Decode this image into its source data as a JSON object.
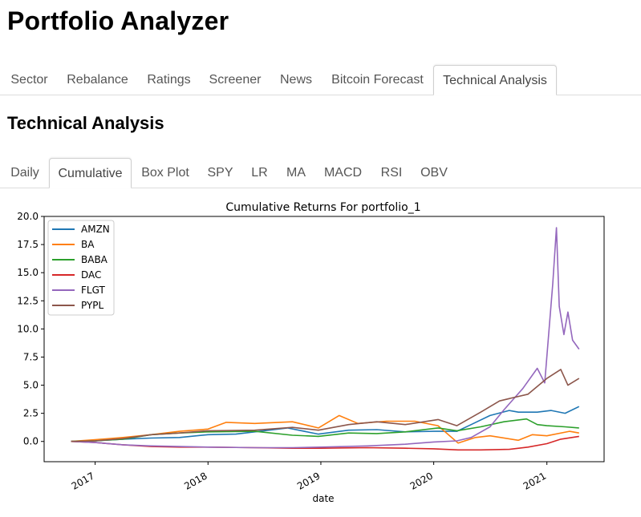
{
  "app": {
    "title": "Portfolio Analyzer"
  },
  "main_tabs": [
    {
      "label": "Sector",
      "active": false
    },
    {
      "label": "Rebalance",
      "active": false
    },
    {
      "label": "Ratings",
      "active": false
    },
    {
      "label": "Screener",
      "active": false
    },
    {
      "label": "News",
      "active": false
    },
    {
      "label": "Bitcoin Forecast",
      "active": false
    },
    {
      "label": "Technical Analysis",
      "active": true
    }
  ],
  "section": {
    "title": "Technical Analysis"
  },
  "sub_tabs": [
    {
      "label": "Daily",
      "active": false
    },
    {
      "label": "Cumulative",
      "active": true
    },
    {
      "label": "Box Plot",
      "active": false
    },
    {
      "label": "SPY",
      "active": false
    },
    {
      "label": "LR",
      "active": false
    },
    {
      "label": "MA",
      "active": false
    },
    {
      "label": "MACD",
      "active": false
    },
    {
      "label": "RSI",
      "active": false
    },
    {
      "label": "OBV",
      "active": false
    }
  ],
  "chart_data": {
    "type": "line",
    "title": "Cumulative Returns For portfolio_1",
    "xlabel": "date",
    "ylabel": "",
    "ylim": [
      -1.8,
      20
    ],
    "xlim": [
      "2016-07-20",
      "2021-07-05"
    ],
    "yticks": [
      "0.0",
      "2.5",
      "5.0",
      "7.5",
      "10.0",
      "12.5",
      "15.0",
      "17.5",
      "20.0"
    ],
    "xticks": [
      "2017",
      "2018",
      "2019",
      "2020",
      "2021"
    ],
    "legend_position": "top-left",
    "grid": false,
    "series": [
      {
        "name": "AMZN",
        "color": "#1f77b4",
        "x": [
          "2016-10-15",
          "2017-01-01",
          "2017-04-01",
          "2017-07-01",
          "2017-10-01",
          "2018-01-01",
          "2018-04-01",
          "2018-07-01",
          "2018-09-15",
          "2018-12-24",
          "2019-04-01",
          "2019-07-01",
          "2019-10-01",
          "2020-01-01",
          "2020-03-16",
          "2020-05-01",
          "2020-07-01",
          "2020-09-01",
          "2020-10-01",
          "2020-12-01",
          "2021-01-15",
          "2021-03-01",
          "2021-04-15"
        ],
        "values": [
          0.0,
          0.05,
          0.2,
          0.3,
          0.35,
          0.6,
          0.65,
          0.95,
          1.2,
          0.65,
          1.0,
          1.05,
          0.85,
          0.9,
          0.9,
          1.5,
          2.3,
          2.75,
          2.6,
          2.6,
          2.75,
          2.5,
          3.1
        ]
      },
      {
        "name": "BA",
        "color": "#ff7f0e",
        "x": [
          "2016-10-15",
          "2017-01-01",
          "2017-04-01",
          "2017-07-01",
          "2017-10-01",
          "2018-01-01",
          "2018-03-01",
          "2018-06-01",
          "2018-10-01",
          "2018-12-24",
          "2019-03-01",
          "2019-05-01",
          "2019-08-01",
          "2019-11-01",
          "2020-01-15",
          "2020-03-20",
          "2020-05-15",
          "2020-07-01",
          "2020-10-01",
          "2020-11-15",
          "2021-01-01",
          "2021-03-15",
          "2021-04-15"
        ],
        "values": [
          0.0,
          0.15,
          0.35,
          0.6,
          0.9,
          1.1,
          1.7,
          1.6,
          1.75,
          1.2,
          2.3,
          1.6,
          1.8,
          1.8,
          1.4,
          -0.15,
          0.35,
          0.5,
          0.1,
          0.6,
          0.5,
          0.9,
          0.75
        ]
      },
      {
        "name": "BABA",
        "color": "#2ca02c",
        "x": [
          "2016-10-15",
          "2017-01-01",
          "2017-04-01",
          "2017-07-01",
          "2017-10-01",
          "2018-01-01",
          "2018-06-01",
          "2018-10-01",
          "2018-12-24",
          "2019-04-01",
          "2019-07-01",
          "2019-10-01",
          "2020-01-15",
          "2020-03-16",
          "2020-06-01",
          "2020-08-15",
          "2020-10-27",
          "2020-12-01",
          "2021-01-01",
          "2021-03-01",
          "2021-04-15"
        ],
        "values": [
          0.0,
          0.05,
          0.2,
          0.6,
          0.75,
          0.85,
          0.9,
          0.55,
          0.45,
          0.75,
          0.7,
          0.85,
          1.2,
          0.95,
          1.3,
          1.75,
          2.0,
          1.5,
          1.4,
          1.3,
          1.2
        ]
      },
      {
        "name": "DAC",
        "color": "#d62728",
        "x": [
          "2016-10-15",
          "2017-01-01",
          "2017-04-01",
          "2017-07-01",
          "2017-10-01",
          "2018-01-01",
          "2018-06-01",
          "2018-10-01",
          "2019-01-01",
          "2019-06-01",
          "2019-10-01",
          "2020-01-01",
          "2020-03-20",
          "2020-06-01",
          "2020-09-01",
          "2020-11-01",
          "2021-01-01",
          "2021-02-15",
          "2021-04-15"
        ],
        "values": [
          0.0,
          -0.1,
          -0.3,
          -0.45,
          -0.5,
          -0.5,
          -0.55,
          -0.6,
          -0.6,
          -0.55,
          -0.6,
          -0.65,
          -0.75,
          -0.75,
          -0.7,
          -0.5,
          -0.2,
          0.2,
          0.45
        ]
      },
      {
        "name": "FLGT",
        "color": "#9467bd",
        "x": [
          "2016-10-15",
          "2017-01-01",
          "2017-04-01",
          "2017-07-01",
          "2017-10-01",
          "2018-01-01",
          "2018-06-01",
          "2018-10-01",
          "2019-01-01",
          "2019-06-01",
          "2019-10-01",
          "2020-01-01",
          "2020-03-16",
          "2020-05-01",
          "2020-07-01",
          "2020-08-15",
          "2020-10-15",
          "2020-12-01",
          "2020-12-25",
          "2021-01-20",
          "2021-02-01",
          "2021-02-10",
          "2021-02-25",
          "2021-03-10",
          "2021-03-25",
          "2021-04-15"
        ],
        "values": [
          0.0,
          -0.1,
          -0.3,
          -0.4,
          -0.45,
          -0.5,
          -0.55,
          -0.55,
          -0.5,
          -0.4,
          -0.25,
          -0.05,
          0.05,
          0.35,
          1.3,
          2.8,
          4.7,
          6.5,
          5.2,
          14.0,
          19.0,
          12.0,
          9.5,
          11.5,
          9.0,
          8.2
        ]
      },
      {
        "name": "PYPL",
        "color": "#8c564b",
        "x": [
          "2016-10-15",
          "2017-01-01",
          "2017-04-01",
          "2017-07-01",
          "2017-10-01",
          "2018-01-01",
          "2018-06-01",
          "2018-10-01",
          "2018-12-24",
          "2019-04-01",
          "2019-07-01",
          "2019-10-01",
          "2020-01-15",
          "2020-03-16",
          "2020-06-01",
          "2020-08-01",
          "2020-09-15",
          "2020-11-01",
          "2021-01-01",
          "2021-02-15",
          "2021-03-10",
          "2021-04-15"
        ],
        "values": [
          0.0,
          0.05,
          0.25,
          0.6,
          0.75,
          0.95,
          1.0,
          1.25,
          1.0,
          1.5,
          1.75,
          1.5,
          1.95,
          1.4,
          2.6,
          3.6,
          3.9,
          4.2,
          5.6,
          6.4,
          5.0,
          5.6
        ]
      }
    ]
  }
}
